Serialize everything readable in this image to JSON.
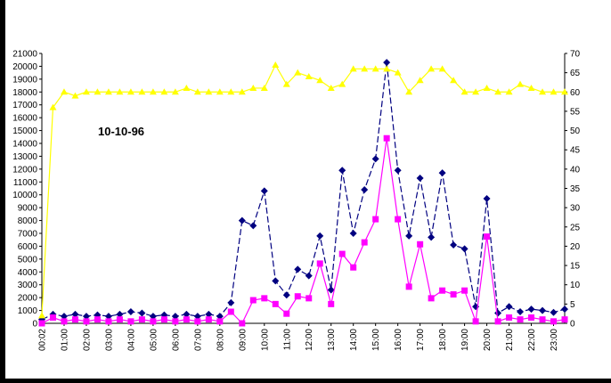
{
  "chart_data": {
    "type": "line",
    "title": "",
    "annotation": "10-10-96",
    "xlabel": "",
    "ylabel": "",
    "ylabel_right": "",
    "grid": false,
    "legend": "none",
    "x_tick_labels": [
      "00:02",
      "01:00",
      "02:00",
      "03:00",
      "04:00",
      "05:00",
      "06:00",
      "07:00",
      "08:00",
      "09:00",
      "10:00",
      "11:00",
      "12:00",
      "13:00",
      "14:00",
      "15:00",
      "16:00",
      "17:00",
      "18:00",
      "19:00",
      "20:00",
      "21:00",
      "22:00",
      "23:00"
    ],
    "y_left": {
      "min": 0,
      "max": 21000,
      "step": 1000
    },
    "y_right": {
      "min": 0,
      "max": 70,
      "step": 5
    },
    "series": [
      {
        "axis": "left",
        "color": "#000080",
        "marker": "diamond",
        "dashed": true,
        "values": [
          300,
          700,
          550,
          700,
          550,
          650,
          550,
          700,
          900,
          800,
          550,
          650,
          550,
          700,
          550,
          700,
          550,
          1600,
          8000,
          7600,
          10300,
          3300,
          2200,
          4200,
          3700,
          6800,
          2600,
          11900,
          7000,
          10400,
          12800,
          20300,
          11900,
          6800,
          11300,
          6700,
          11700,
          6100,
          5800,
          1300,
          9700,
          800,
          1300,
          900,
          1100,
          1000,
          850,
          1100
        ],
        "x_pos": [
          0,
          0.5,
          1,
          1.5,
          2,
          2.5,
          3,
          3.5,
          4,
          4.5,
          5,
          5.5,
          6,
          6.5,
          7,
          7.5,
          8,
          8.5,
          9,
          9.5,
          10,
          10.5,
          11,
          11.5,
          12,
          12.5,
          13,
          13.5,
          14,
          14.5,
          15,
          15.5,
          16,
          16.5,
          17,
          17.5,
          18,
          18.5,
          19,
          19.5,
          20,
          20.5,
          21,
          21.5,
          22,
          22.5,
          23,
          23.5
        ]
      },
      {
        "axis": "right",
        "color": "#ff00ff",
        "marker": "square",
        "dashed": false,
        "values": [
          0,
          1.5,
          0.5,
          1,
          0.5,
          1,
          0.5,
          1,
          0.5,
          1,
          0.5,
          1,
          0.5,
          1,
          0.5,
          1,
          0.5,
          3,
          0,
          6,
          6.5,
          5,
          2.5,
          7,
          6.5,
          15.5,
          5,
          18,
          14.5,
          21,
          27,
          48,
          27,
          9.5,
          20.5,
          6.5,
          8.5,
          7.5,
          8.5,
          0.5,
          22.5,
          0.5,
          1.5,
          1,
          1.5,
          1,
          0.5,
          1
        ],
        "x_pos": [
          0,
          0.5,
          1,
          1.5,
          2,
          2.5,
          3,
          3.5,
          4,
          4.5,
          5,
          5.5,
          6,
          6.5,
          7,
          7.5,
          8,
          8.5,
          9,
          9.5,
          10,
          10.5,
          11,
          11.5,
          12,
          12.5,
          13,
          13.5,
          14,
          14.5,
          15,
          15.5,
          16,
          16.5,
          17,
          17.5,
          18,
          18.5,
          19,
          19.5,
          20,
          20.5,
          21,
          21.5,
          22,
          22.5,
          23,
          23.5
        ]
      },
      {
        "axis": "right",
        "color": "#ffff00",
        "marker": "triangle",
        "dashed": false,
        "values": [
          2,
          56,
          60,
          59,
          60,
          60,
          60,
          60,
          60,
          60,
          60,
          60,
          60,
          61,
          60,
          60,
          60,
          60,
          60,
          61,
          61,
          67,
          62,
          65,
          64,
          63,
          61,
          62,
          66,
          66,
          66,
          66,
          65,
          60,
          63,
          66,
          66,
          63,
          60,
          60,
          61,
          60,
          60,
          62,
          61,
          60,
          60,
          60
        ],
        "x_pos": [
          0,
          0.5,
          1,
          1.5,
          2,
          2.5,
          3,
          3.5,
          4,
          4.5,
          5,
          5.5,
          6,
          6.5,
          7,
          7.5,
          8,
          8.5,
          9,
          9.5,
          10,
          10.5,
          11,
          11.5,
          12,
          12.5,
          13,
          13.5,
          14,
          14.5,
          15,
          15.5,
          16,
          16.5,
          17,
          17.5,
          18,
          18.5,
          19,
          19.5,
          20,
          20.5,
          21,
          21.5,
          22,
          22.5,
          23,
          23.5
        ]
      }
    ]
  }
}
